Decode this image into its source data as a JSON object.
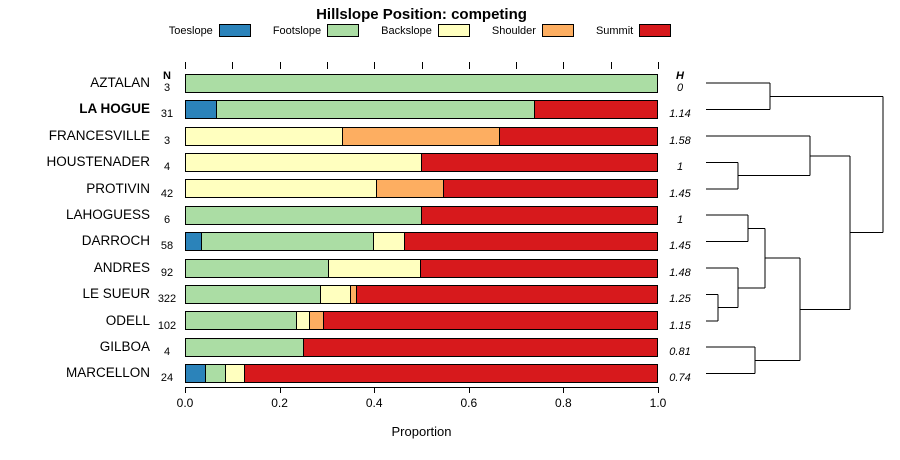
{
  "columns": {
    "n_header": "N",
    "h_header": "H"
  },
  "chart_data": {
    "type": "bar",
    "variant": "horizontal-stacked-proportions-with-dendrogram",
    "title": "Hillslope Position: competing",
    "xlabel": "Proportion",
    "xlim": [
      0,
      1
    ],
    "x_ticks_labeled": [
      0,
      0.2,
      0.4,
      0.6,
      0.8,
      1
    ],
    "x_minor_tick_step_top": 0.1,
    "legend_position": "top",
    "categories": [
      "AZTALAN",
      "LA HOGUE",
      "FRANCESVILLE",
      "HOUSTENADER",
      "PROTIVIN",
      "LAHOGUESS",
      "DARROCH",
      "ANDRES",
      "LE SUEUR",
      "ODELL",
      "GILBOA",
      "MARCELLON"
    ],
    "bold_category": "LA HOGUE",
    "n_values": [
      3,
      31,
      3,
      4,
      42,
      6,
      58,
      92,
      322,
      102,
      4,
      24
    ],
    "h_values": [
      "0",
      "1.14",
      "1.58",
      "1",
      "1.45",
      "1",
      "1.45",
      "1.48",
      "1.25",
      "1.15",
      "0.81",
      "0.74"
    ],
    "series": [
      {
        "name": "Toeslope",
        "color": "#2B83BA",
        "values": [
          0,
          0.065,
          0,
          0,
          0,
          0,
          0.035,
          0,
          0,
          0,
          0,
          0.042
        ]
      },
      {
        "name": "Footslope",
        "color": "#ABDDA4",
        "values": [
          1.0,
          0.677,
          0,
          0,
          0,
          0.5,
          0.365,
          0.304,
          0.286,
          0.235,
          0.25,
          0.042
        ]
      },
      {
        "name": "Backslope",
        "color": "#FFFFBF",
        "values": [
          0,
          0,
          0.333,
          0.5,
          0.405,
          0,
          0.065,
          0.196,
          0.065,
          0.029,
          0,
          0.042
        ]
      },
      {
        "name": "Shoulder",
        "color": "#FDAE61",
        "values": [
          0,
          0,
          0.333,
          0,
          0.143,
          0,
          0,
          0,
          0.012,
          0.029,
          0,
          0
        ]
      },
      {
        "name": "Summit",
        "color": "#D7191C",
        "values": [
          0,
          0.258,
          0.334,
          0.5,
          0.452,
          0.5,
          0.535,
          0.5,
          0.637,
          0.707,
          0.75,
          0.874
        ]
      }
    ]
  },
  "dendrogram": {
    "orientation": "right",
    "segments": [
      [
        6,
        83.2,
        70,
        83.2
      ],
      [
        6,
        109.6,
        70,
        109.6
      ],
      [
        70,
        83.2,
        70,
        109.6
      ],
      [
        6,
        162.4,
        38,
        162.4
      ],
      [
        6,
        188.8,
        38,
        188.8
      ],
      [
        38,
        162.4,
        38,
        188.8
      ],
      [
        6,
        136,
        110,
        136
      ],
      [
        38,
        175.6,
        110,
        175.6
      ],
      [
        110,
        136,
        110,
        175.6
      ],
      [
        6,
        215.2,
        48,
        215.2
      ],
      [
        6,
        241.6,
        48,
        241.6
      ],
      [
        48,
        215.2,
        48,
        241.6
      ],
      [
        6,
        294.4,
        18,
        294.4
      ],
      [
        6,
        320.8,
        18,
        320.8
      ],
      [
        18,
        294.4,
        18,
        320.8
      ],
      [
        6,
        268,
        38,
        268
      ],
      [
        18,
        307.6,
        38,
        307.6
      ],
      [
        38,
        268,
        38,
        307.6
      ],
      [
        48,
        228.4,
        65,
        228.4
      ],
      [
        38,
        287.8,
        65,
        287.8
      ],
      [
        65,
        228.4,
        65,
        287.8
      ],
      [
        6,
        347.2,
        55,
        347.2
      ],
      [
        6,
        373.6,
        55,
        373.6
      ],
      [
        55,
        347.2,
        55,
        373.6
      ],
      [
        65,
        258.1,
        100,
        258.1
      ],
      [
        55,
        360.4,
        100,
        360.4
      ],
      [
        100,
        258.1,
        100,
        360.4
      ],
      [
        110,
        155.8,
        150,
        155.8
      ],
      [
        100,
        309.3,
        150,
        309.3
      ],
      [
        150,
        155.8,
        150,
        309.3
      ],
      [
        70,
        96.4,
        183,
        96.4
      ],
      [
        150,
        232.5,
        183,
        232.5
      ],
      [
        183,
        96.4,
        183,
        232.5
      ]
    ]
  }
}
